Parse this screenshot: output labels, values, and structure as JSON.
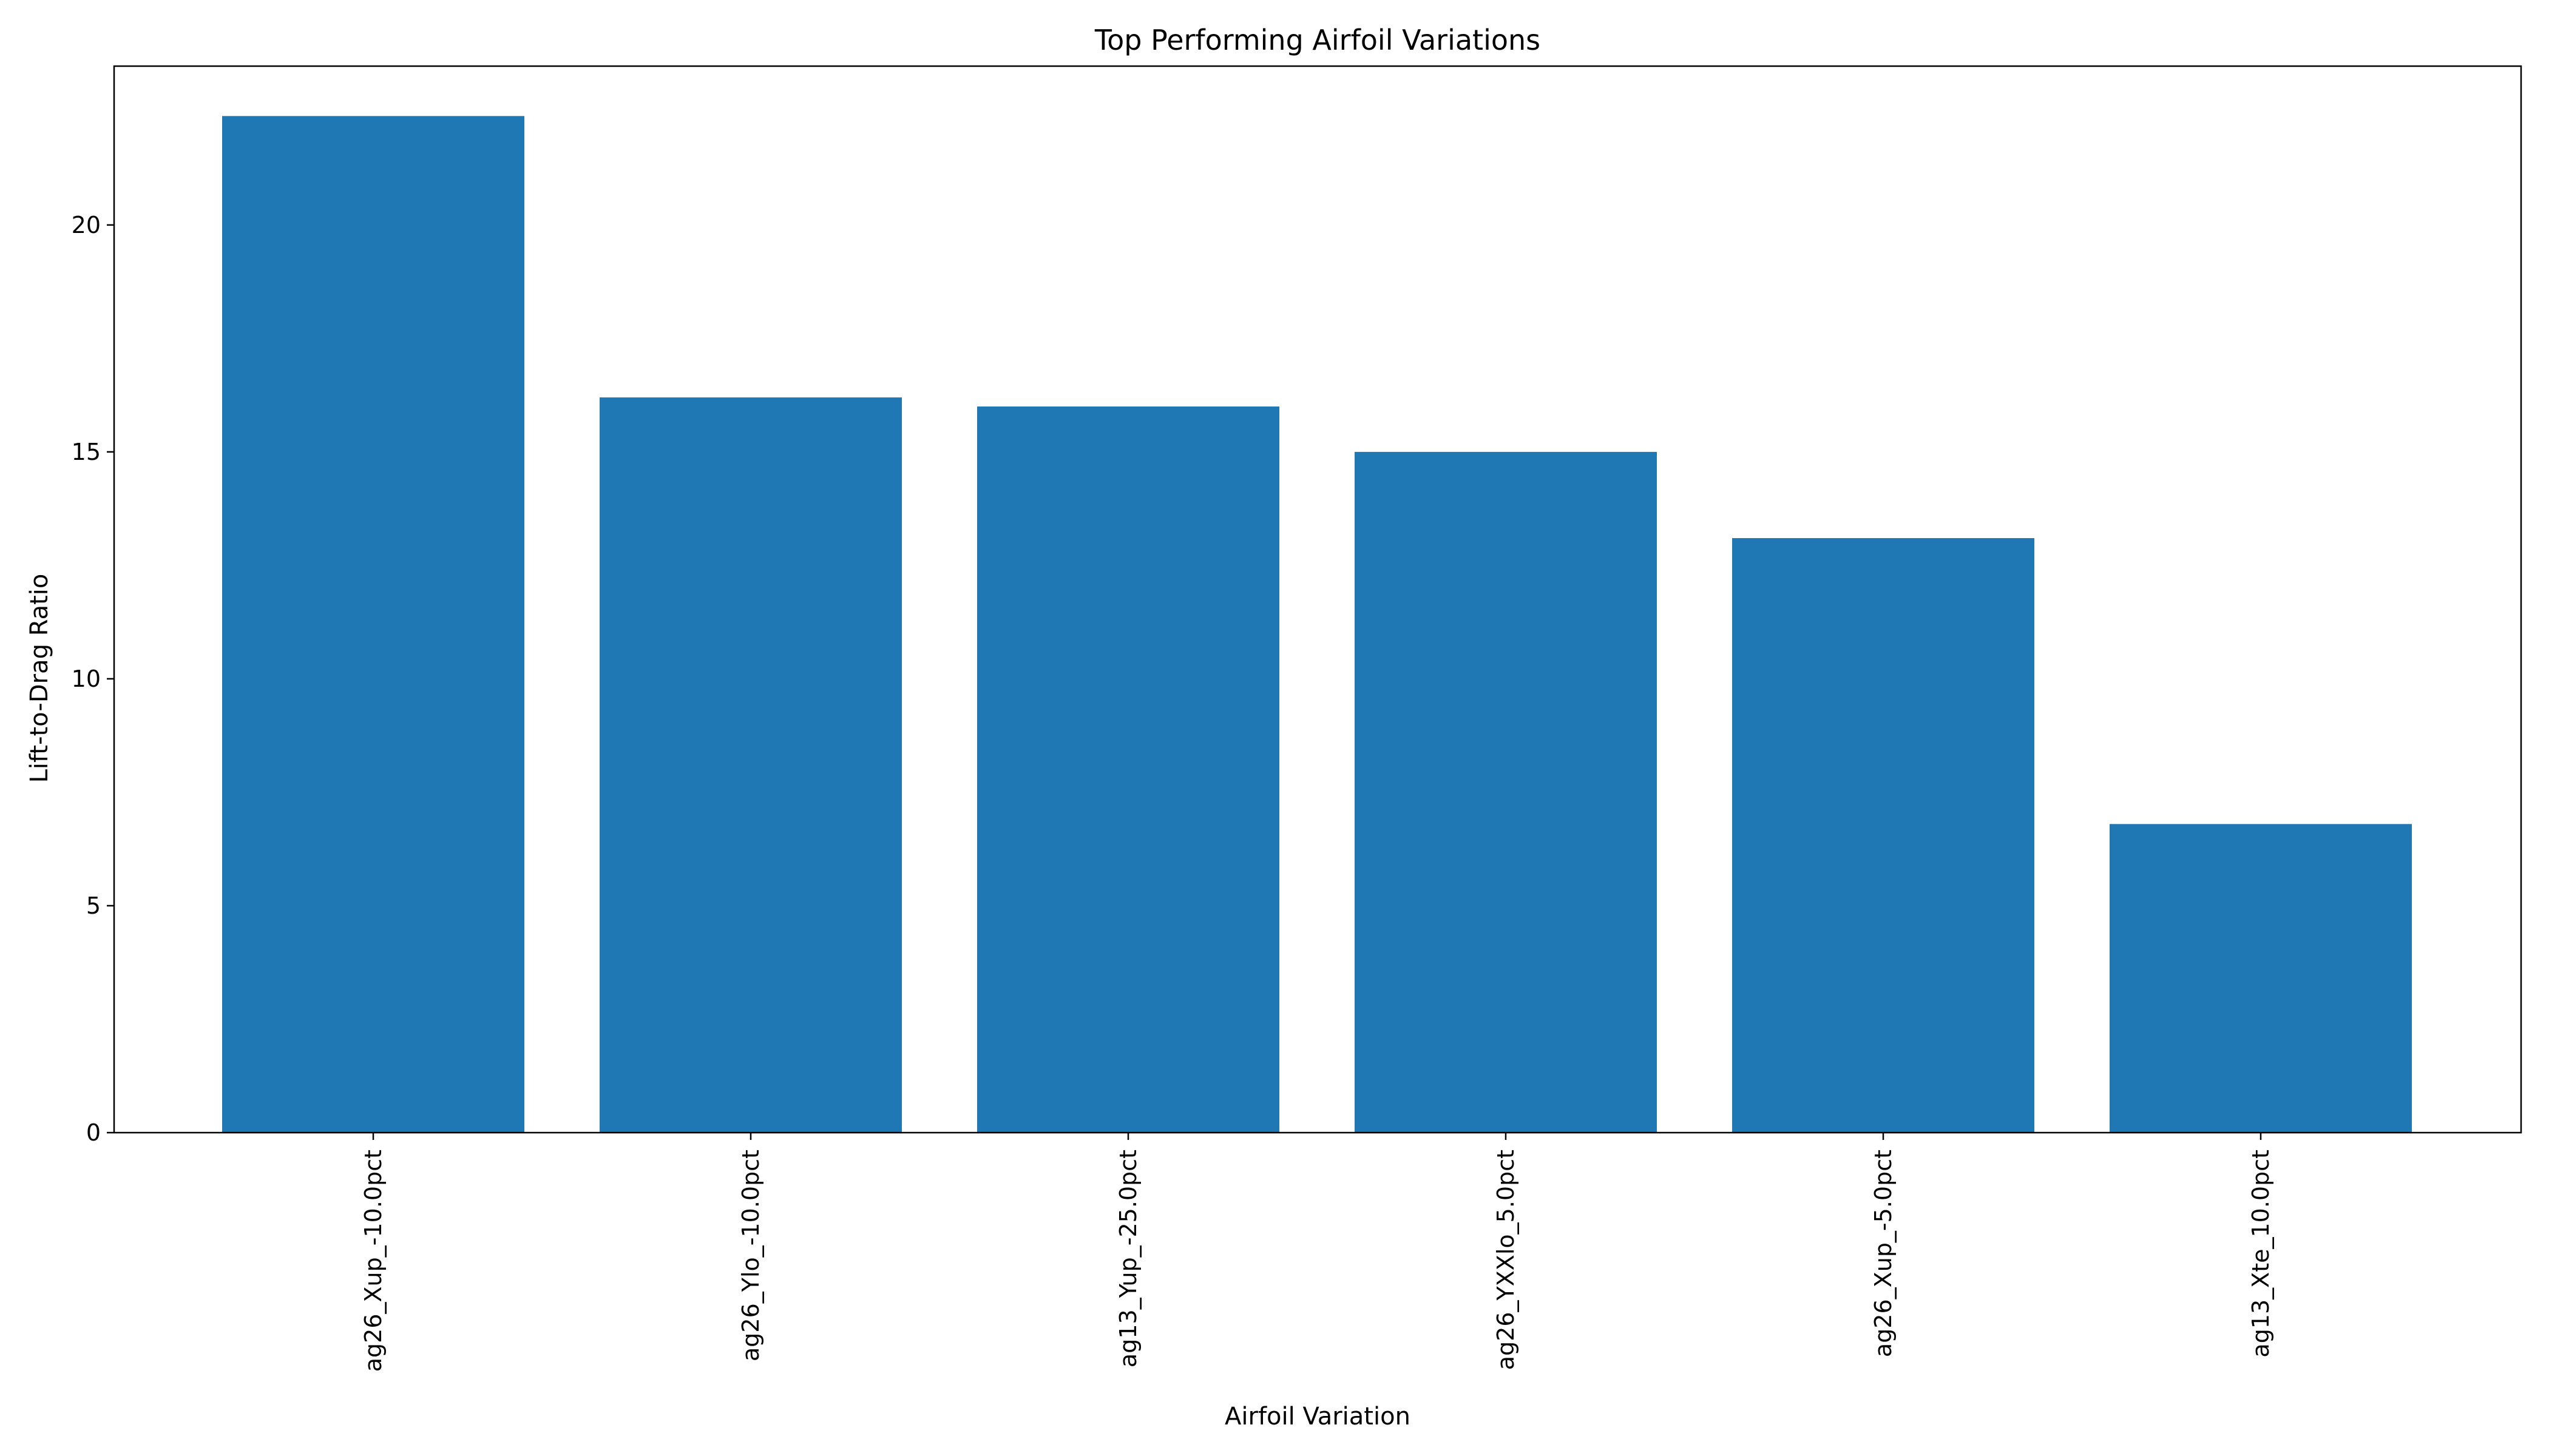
{
  "chart_data": {
    "type": "bar",
    "title": "Top Performing Airfoil Variations",
    "xlabel": "Airfoil Variation",
    "ylabel": "Lift-to-Drag Ratio",
    "categories": [
      "ag26_Xup_-10.0pct",
      "ag26_Ylo_-10.0pct",
      "ag13_Yup_-25.0pct",
      "ag26_YXXlo_5.0pct",
      "ag26_Xup_-5.0pct",
      "ag13_Xte_10.0pct"
    ],
    "values": [
      22.4,
      16.2,
      16.0,
      15.0,
      13.1,
      6.8
    ],
    "ylim": [
      0,
      23.5
    ],
    "yticks": [
      0,
      5,
      10,
      15,
      20
    ],
    "grid": false,
    "legend": "none",
    "bar_color": "#1f77b4"
  }
}
